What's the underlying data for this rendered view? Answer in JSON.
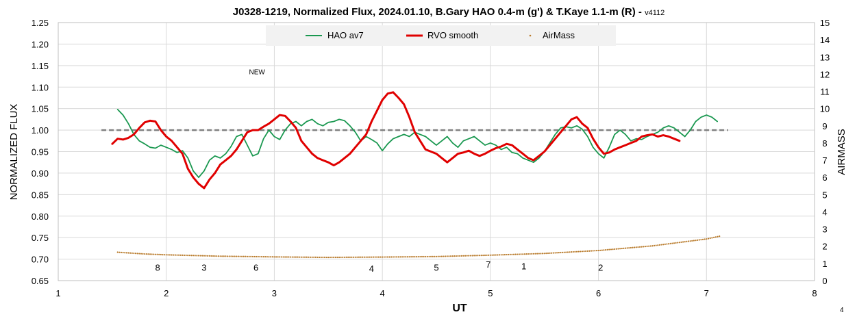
{
  "chart_data": {
    "type": "line",
    "title": "J0328-1219, Normalized Flux, 2024.01.10, B.Gary HAO 0.4-m (g') & T.Kaye 1.1-m (R)",
    "title_suffix": " - ",
    "version": "v4112",
    "xlabel": "UT",
    "ylabel": "NORMALIZED FLUX",
    "y2label": "AIRMASS",
    "xlim": [
      1,
      8
    ],
    "ylim": [
      0.65,
      1.25
    ],
    "y2lim": [
      0,
      15
    ],
    "xticks": [
      "1",
      "2",
      "3",
      "4",
      "5",
      "6",
      "7",
      "8"
    ],
    "yticks": [
      "0.65",
      "0.70",
      "0.75",
      "0.80",
      "0.85",
      "0.90",
      "0.95",
      "1.00",
      "1.05",
      "1.10",
      "1.15",
      "1.20",
      "1.25"
    ],
    "y2ticks": [
      "0",
      "1",
      "2",
      "3",
      "4",
      "5",
      "6",
      "7",
      "8",
      "9",
      "10",
      "11",
      "12",
      "13",
      "14",
      "15"
    ],
    "grid": true,
    "legend_position": "top-center",
    "reference_line": {
      "y": 1.0,
      "x": [
        1.4,
        7.2
      ],
      "color": "#808080",
      "style": "dashed"
    },
    "series": [
      {
        "name": "HAO av7",
        "color": "#1a9850",
        "axis": "left",
        "x": [
          1.55,
          1.6,
          1.65,
          1.7,
          1.75,
          1.8,
          1.85,
          1.9,
          1.95,
          2.0,
          2.05,
          2.1,
          2.15,
          2.2,
          2.25,
          2.3,
          2.35,
          2.4,
          2.45,
          2.5,
          2.55,
          2.6,
          2.65,
          2.7,
          2.75,
          2.8,
          2.85,
          2.9,
          2.95,
          3.0,
          3.05,
          3.1,
          3.15,
          3.2,
          3.25,
          3.3,
          3.35,
          3.4,
          3.45,
          3.5,
          3.55,
          3.6,
          3.65,
          3.7,
          3.75,
          3.8,
          3.85,
          3.9,
          3.95,
          4.0,
          4.05,
          4.1,
          4.15,
          4.2,
          4.25,
          4.3,
          4.35,
          4.4,
          4.45,
          4.5,
          4.55,
          4.6,
          4.65,
          4.7,
          4.75,
          4.8,
          4.85,
          4.9,
          4.95,
          5.0,
          5.05,
          5.1,
          5.15,
          5.2,
          5.25,
          5.3,
          5.35,
          5.4,
          5.45,
          5.5,
          5.55,
          5.6,
          5.65,
          5.7,
          5.75,
          5.8,
          5.85,
          5.9,
          5.95,
          6.0,
          6.05,
          6.1,
          6.15,
          6.2,
          6.25,
          6.3,
          6.35,
          6.4,
          6.45,
          6.5,
          6.55,
          6.6,
          6.65,
          6.7,
          6.75,
          6.8,
          6.85,
          6.9,
          6.95,
          7.0,
          7.05,
          7.1
        ],
        "values": [
          1.048,
          1.035,
          1.015,
          0.99,
          0.975,
          0.968,
          0.96,
          0.958,
          0.965,
          0.96,
          0.955,
          0.948,
          0.952,
          0.935,
          0.905,
          0.89,
          0.905,
          0.93,
          0.94,
          0.935,
          0.945,
          0.962,
          0.985,
          0.99,
          0.965,
          0.94,
          0.945,
          0.98,
          1.0,
          0.985,
          0.978,
          1.0,
          1.015,
          1.02,
          1.01,
          1.02,
          1.025,
          1.015,
          1.01,
          1.018,
          1.02,
          1.025,
          1.022,
          1.01,
          0.995,
          0.975,
          0.985,
          0.978,
          0.97,
          0.952,
          0.968,
          0.98,
          0.985,
          0.99,
          0.985,
          0.995,
          0.99,
          0.985,
          0.975,
          0.965,
          0.975,
          0.985,
          0.97,
          0.96,
          0.975,
          0.98,
          0.985,
          0.975,
          0.965,
          0.97,
          0.965,
          0.955,
          0.96,
          0.948,
          0.945,
          0.935,
          0.93,
          0.925,
          0.935,
          0.95,
          0.97,
          0.99,
          1.005,
          1.008,
          1.005,
          1.01,
          1.002,
          0.985,
          0.96,
          0.945,
          0.935,
          0.96,
          0.99,
          1.0,
          0.99,
          0.975,
          0.98,
          0.978,
          0.985,
          0.99,
          0.995,
          1.005,
          1.01,
          1.005,
          0.995,
          0.985,
          1.0,
          1.02,
          1.03,
          1.035,
          1.03,
          1.02
        ]
      },
      {
        "name": "RVO smooth",
        "color": "#e00000",
        "axis": "left",
        "x": [
          1.5,
          1.55,
          1.6,
          1.65,
          1.7,
          1.75,
          1.8,
          1.85,
          1.9,
          1.95,
          2.0,
          2.05,
          2.1,
          2.15,
          2.2,
          2.25,
          2.3,
          2.35,
          2.4,
          2.45,
          2.5,
          2.55,
          2.6,
          2.65,
          2.7,
          2.75,
          2.8,
          2.85,
          2.9,
          2.95,
          3.0,
          3.05,
          3.1,
          3.15,
          3.2,
          3.25,
          3.3,
          3.35,
          3.4,
          3.45,
          3.5,
          3.55,
          3.6,
          3.65,
          3.7,
          3.75,
          3.8,
          3.85,
          3.9,
          3.95,
          4.0,
          4.05,
          4.1,
          4.15,
          4.2,
          4.25,
          4.3,
          4.35,
          4.4,
          4.45,
          4.5,
          4.55,
          4.6,
          4.65,
          4.7,
          4.75,
          4.8,
          4.85,
          4.9,
          4.95,
          5.0,
          5.05,
          5.1,
          5.15,
          5.2,
          5.25,
          5.3,
          5.35,
          5.4,
          5.45,
          5.5,
          5.55,
          5.6,
          5.65,
          5.7,
          5.75,
          5.8,
          5.85,
          5.9,
          5.95,
          6.0,
          6.05,
          6.1,
          6.15,
          6.2,
          6.25,
          6.3,
          6.35,
          6.4,
          6.45,
          6.5,
          6.55,
          6.6,
          6.65,
          6.7,
          6.75
        ],
        "values": [
          0.968,
          0.98,
          0.978,
          0.982,
          0.99,
          1.005,
          1.018,
          1.022,
          1.02,
          1.0,
          0.985,
          0.975,
          0.96,
          0.945,
          0.91,
          0.89,
          0.875,
          0.865,
          0.885,
          0.9,
          0.92,
          0.93,
          0.94,
          0.955,
          0.975,
          0.995,
          1.0,
          1.0,
          1.008,
          1.015,
          1.025,
          1.035,
          1.033,
          1.02,
          1.005,
          0.975,
          0.96,
          0.945,
          0.935,
          0.93,
          0.925,
          0.918,
          0.925,
          0.935,
          0.945,
          0.96,
          0.975,
          0.99,
          1.02,
          1.045,
          1.07,
          1.085,
          1.088,
          1.075,
          1.06,
          1.03,
          0.995,
          0.975,
          0.955,
          0.95,
          0.945,
          0.935,
          0.925,
          0.935,
          0.945,
          0.948,
          0.952,
          0.945,
          0.94,
          0.945,
          0.952,
          0.958,
          0.962,
          0.968,
          0.965,
          0.955,
          0.945,
          0.935,
          0.93,
          0.94,
          0.95,
          0.965,
          0.98,
          0.995,
          1.01,
          1.025,
          1.03,
          1.015,
          1.005,
          0.98,
          0.96,
          0.945,
          0.948,
          0.955,
          0.96,
          0.965,
          0.97,
          0.975,
          0.985,
          0.988,
          0.99,
          0.985,
          0.988,
          0.985,
          0.98,
          0.975
        ]
      },
      {
        "name": "AirMass",
        "color": "#b87a2a",
        "axis": "right",
        "marker": "point",
        "x": [
          1.55,
          1.8,
          2.0,
          2.5,
          3.0,
          3.5,
          4.0,
          4.5,
          5.0,
          5.5,
          6.0,
          6.5,
          7.0,
          7.12
        ],
        "values": [
          1.65,
          1.55,
          1.5,
          1.42,
          1.38,
          1.35,
          1.37,
          1.4,
          1.48,
          1.58,
          1.75,
          2.02,
          2.42,
          2.58
        ]
      }
    ],
    "annotations": [
      {
        "text": "NEW",
        "x": 2.84,
        "y": 1.13
      },
      {
        "text": "8",
        "x": 1.92,
        "y": 0.673
      },
      {
        "text": "3",
        "x": 2.35,
        "y": 0.673
      },
      {
        "text": "6",
        "x": 2.83,
        "y": 0.673
      },
      {
        "text": "4",
        "x": 3.9,
        "y": 0.671
      },
      {
        "text": "5",
        "x": 4.5,
        "y": 0.673
      },
      {
        "text": "7",
        "x": 4.98,
        "y": 0.68
      },
      {
        "text": "1",
        "x": 5.31,
        "y": 0.676
      },
      {
        "text": "2",
        "x": 6.02,
        "y": 0.673
      }
    ],
    "corner_label": "4"
  }
}
